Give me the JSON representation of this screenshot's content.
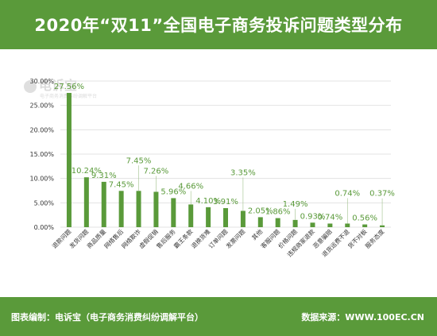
{
  "header": {
    "title": "2020年“双11”全国电子商务投诉问题类型分布"
  },
  "watermark": {
    "text": "电诉宝",
    "sub": "电子商务消费纠纷调解平台"
  },
  "footer": {
    "left": "图表编制：电诉宝（电子商务消费纠纷调解平台）",
    "right": "数据来源：WWW.100EC.CN"
  },
  "colors": {
    "header_bg": "#5a9a3a",
    "bar": "#5a9a3a",
    "label": "#5a9a3a"
  },
  "chart_data": {
    "type": "bar",
    "title": "2020年“双11”全国电子商务投诉问题类型分布",
    "xlabel": "",
    "ylabel": "",
    "ylim": [
      0,
      30
    ],
    "yticks": [
      "0.00%",
      "5.00%",
      "10.00%",
      "15.00%",
      "20.00%",
      "25.00%",
      "30.00%"
    ],
    "grid": true,
    "categories": [
      "退款问题",
      "发货问题",
      "商品质量",
      "网络售后",
      "网络欺诈",
      "虚假促销",
      "售后服务",
      "霸王条款",
      "退换货难",
      "订单问题",
      "发票问题",
      "其他",
      "客服问题",
      "价格问题",
      "违规商家退款",
      "恶意骗赔",
      "退货运费不退",
      "货不对板",
      "服务态度"
    ],
    "values": [
      27.56,
      10.24,
      9.31,
      7.45,
      7.45,
      7.26,
      5.96,
      4.66,
      4.1,
      3.91,
      3.35,
      2.05,
      1.86,
      1.49,
      0.93,
      0.74,
      0.74,
      0.56,
      0.37
    ],
    "labels": [
      "27.56%",
      "10.24%",
      "9.31%",
      "7.45%",
      "7.45%",
      "7.26%",
      "5.96%",
      "4.66%",
      "4.10%",
      "3.91%",
      "3.35%",
      "2.05%",
      "1.86%",
      "1.49%",
      "0.93%",
      "0.74%",
      "0.74%",
      "0.56%",
      "0.37%"
    ]
  }
}
